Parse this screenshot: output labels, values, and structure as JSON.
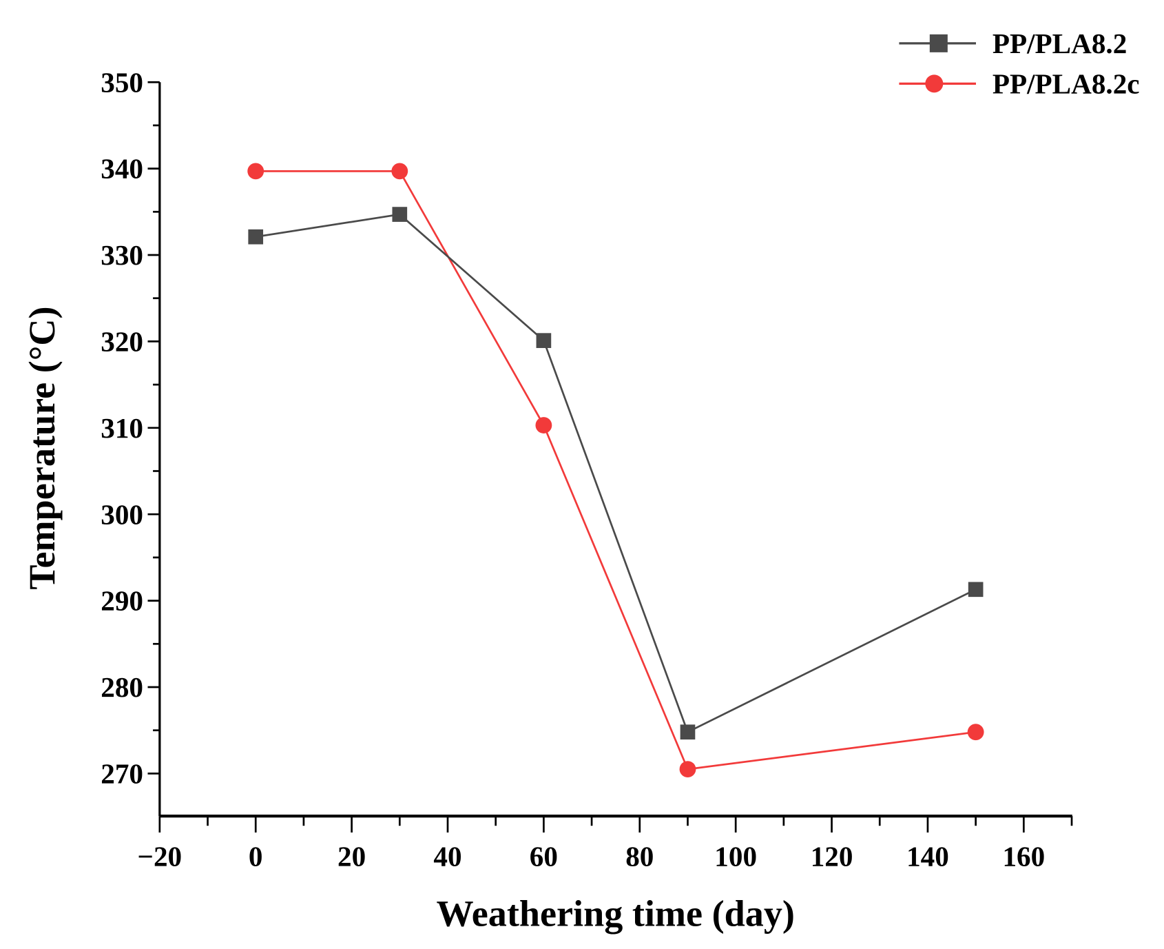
{
  "chart_data": {
    "type": "line",
    "title": "",
    "xlabel": "Weathering time (day)",
    "ylabel": "Temperature (°C)",
    "xlim": [
      -20,
      170
    ],
    "ylim": [
      265,
      350
    ],
    "xticks": [
      -20,
      0,
      20,
      40,
      60,
      80,
      100,
      120,
      140,
      160
    ],
    "xtick_labels": [
      "−20",
      "0",
      "20",
      "40",
      "60",
      "80",
      "100",
      "120",
      "140",
      "160"
    ],
    "yticks": [
      270,
      280,
      290,
      300,
      310,
      320,
      330,
      340,
      350
    ],
    "ytick_labels": [
      "270",
      "280",
      "290",
      "300",
      "310",
      "320",
      "330",
      "340",
      "350"
    ],
    "grid": false,
    "legend_position": "top-right",
    "x": [
      0,
      30,
      60,
      90,
      150
    ],
    "series": [
      {
        "name": "PP/PLA8.2",
        "color": "#4a4a4a",
        "marker": "square",
        "values": [
          332.1,
          334.7,
          320.1,
          274.8,
          291.3
        ]
      },
      {
        "name": "PP/PLA8.2c",
        "color": "#f23a3a",
        "marker": "circle",
        "values": [
          339.7,
          339.7,
          310.3,
          270.5,
          274.8
        ]
      }
    ]
  }
}
